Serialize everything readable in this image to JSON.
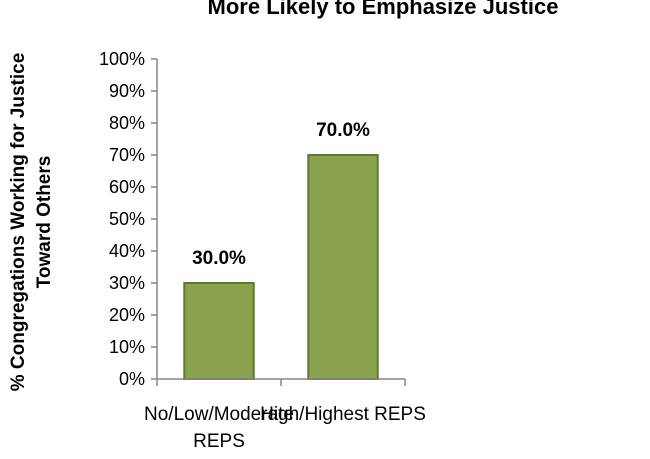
{
  "chart_data": {
    "type": "bar",
    "title": "More Likely to Emphasize Justice",
    "ylabel_lines": [
      "% Congregations Working for Justice",
      "Toward Others"
    ],
    "xlabel": "",
    "categories": [
      [
        "No/Low/Moderate",
        "REPS"
      ],
      [
        "High/Highest REPS"
      ]
    ],
    "values": [
      30.0,
      70.0
    ],
    "data_labels": [
      "30.0%",
      "70.0%"
    ],
    "yticks": [
      "0%",
      "10%",
      "20%",
      "30%",
      "40%",
      "50%",
      "60%",
      "70%",
      "80%",
      "90%",
      "100%"
    ],
    "ylim": [
      0,
      100
    ],
    "grid": false,
    "legend": "none",
    "colors": {
      "bar_fill": "#8ba24e",
      "bar_stroke": "#5f7a2e",
      "axis": "#868686"
    }
  }
}
